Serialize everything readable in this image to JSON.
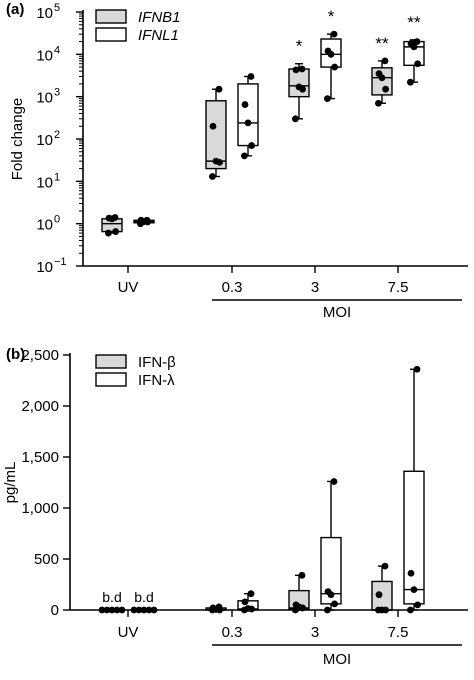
{
  "chart_data": [
    {
      "panel_label": "(a)",
      "type": "box",
      "ylabel": "Fold change",
      "yscale": "log",
      "ylim": [
        0.1,
        100000
      ],
      "yticks": [
        {
          "base": "10",
          "exp": "5"
        },
        {
          "base": "10",
          "exp": "4"
        },
        {
          "base": "10",
          "exp": "3"
        },
        {
          "base": "10",
          "exp": "2"
        },
        {
          "base": "10",
          "exp": "1"
        },
        {
          "base": "10",
          "exp": "0"
        },
        {
          "base": "10",
          "exp": "−1"
        }
      ],
      "categories": [
        "UV",
        "0.3",
        "3",
        "7.5"
      ],
      "group_label": "MOI",
      "legend": {
        "position": "top-left",
        "entries": [
          "IFNB1",
          "IFNL1"
        ]
      },
      "colors": {
        "series1": "#d9d9d9",
        "series2": "#ffffff"
      },
      "series": [
        {
          "name": "IFNB1",
          "boxes": [
            {
              "min": 0.6,
              "q1": 0.65,
              "median": 1.0,
              "q3": 1.3,
              "max": 1.5,
              "points": [
                0.6,
                0.65,
                1.3,
                1.35,
                1.4
              ]
            },
            {
              "min": 13,
              "q1": 20,
              "median": 30,
              "q3": 800,
              "max": 1500,
              "points": [
                13,
                28,
                30,
                200,
                1500
              ]
            },
            {
              "min": 300,
              "q1": 1000,
              "median": 1800,
              "q3": 4500,
              "max": 6000,
              "points": [
                300,
                1500,
                1700,
                4300,
                4500
              ]
            },
            {
              "min": 700,
              "q1": 1100,
              "median": 2800,
              "q3": 4800,
              "max": 7000,
              "points": [
                700,
                1500,
                2800,
                3500,
                7000
              ]
            }
          ],
          "significance": [
            "",
            "",
            "*",
            "**"
          ]
        },
        {
          "name": "IFNL1",
          "boxes": [
            {
              "min": 1.0,
              "q1": 1.05,
              "median": 1.12,
              "q3": 1.2,
              "max": 1.25,
              "points": [
                1.0,
                1.1,
                1.12,
                1.2,
                1.2
              ]
            },
            {
              "min": 40,
              "q1": 70,
              "median": 240,
              "q3": 2000,
              "max": 3000,
              "points": [
                40,
                70,
                240,
                650,
                3000
              ]
            },
            {
              "min": 900,
              "q1": 5000,
              "median": 10000,
              "q3": 23000,
              "max": 30000,
              "points": [
                900,
                5000,
                10000,
                12000,
                30000
              ]
            },
            {
              "min": 2200,
              "q1": 5500,
              "median": 15000,
              "q3": 20000,
              "max": 22000,
              "points": [
                2200,
                6000,
                15000,
                18000,
                20000
              ]
            }
          ],
          "significance": [
            "",
            "",
            "*",
            "**"
          ]
        }
      ]
    },
    {
      "panel_label": "(b)",
      "type": "box",
      "ylabel": "pg/mL",
      "yscale": "linear",
      "ylim": [
        0,
        2500
      ],
      "yticks": [
        "2,500",
        "2,000",
        "1,500",
        "1,000",
        "500",
        "0"
      ],
      "categories": [
        "UV",
        "0.3",
        "3",
        "7.5"
      ],
      "group_label": "MOI",
      "legend": {
        "position": "top-left",
        "entries": [
          "IFN-β",
          "IFN-λ"
        ]
      },
      "colors": {
        "series1": "#d9d9d9",
        "series2": "#ffffff"
      },
      "series": [
        {
          "name": "IFN-β",
          "boxes": [
            {
              "min": 0,
              "q1": 0,
              "median": 0,
              "q3": 0,
              "max": 0,
              "points": [
                0,
                0,
                0,
                0,
                0
              ],
              "label": "b.d"
            },
            {
              "min": 0,
              "q1": 0,
              "median": 5,
              "q3": 20,
              "max": 30,
              "points": [
                0,
                0,
                5,
                20,
                30
              ]
            },
            {
              "min": 0,
              "q1": 10,
              "median": 20,
              "q3": 190,
              "max": 340,
              "points": [
                0,
                20,
                30,
                50,
                340
              ]
            },
            {
              "min": 0,
              "q1": 0,
              "median": 0,
              "q3": 280,
              "max": 430,
              "points": [
                0,
                0,
                0,
                150,
                430
              ]
            }
          ]
        },
        {
          "name": "IFN-λ",
          "boxes": [
            {
              "min": 0,
              "q1": 0,
              "median": 0,
              "q3": 0,
              "max": 0,
              "points": [
                0,
                0,
                0,
                0,
                0
              ],
              "label": "b.d"
            },
            {
              "min": 0,
              "q1": 0,
              "median": 10,
              "q3": 90,
              "max": 160,
              "points": [
                0,
                10,
                15,
                80,
                160
              ]
            },
            {
              "min": 0,
              "q1": 60,
              "median": 160,
              "q3": 710,
              "max": 1260,
              "points": [
                0,
                60,
                150,
                180,
                1260
              ]
            },
            {
              "min": 0,
              "q1": 60,
              "median": 200,
              "q3": 1360,
              "max": 2360,
              "points": [
                0,
                50,
                200,
                360,
                2360
              ]
            }
          ]
        }
      ]
    }
  ]
}
